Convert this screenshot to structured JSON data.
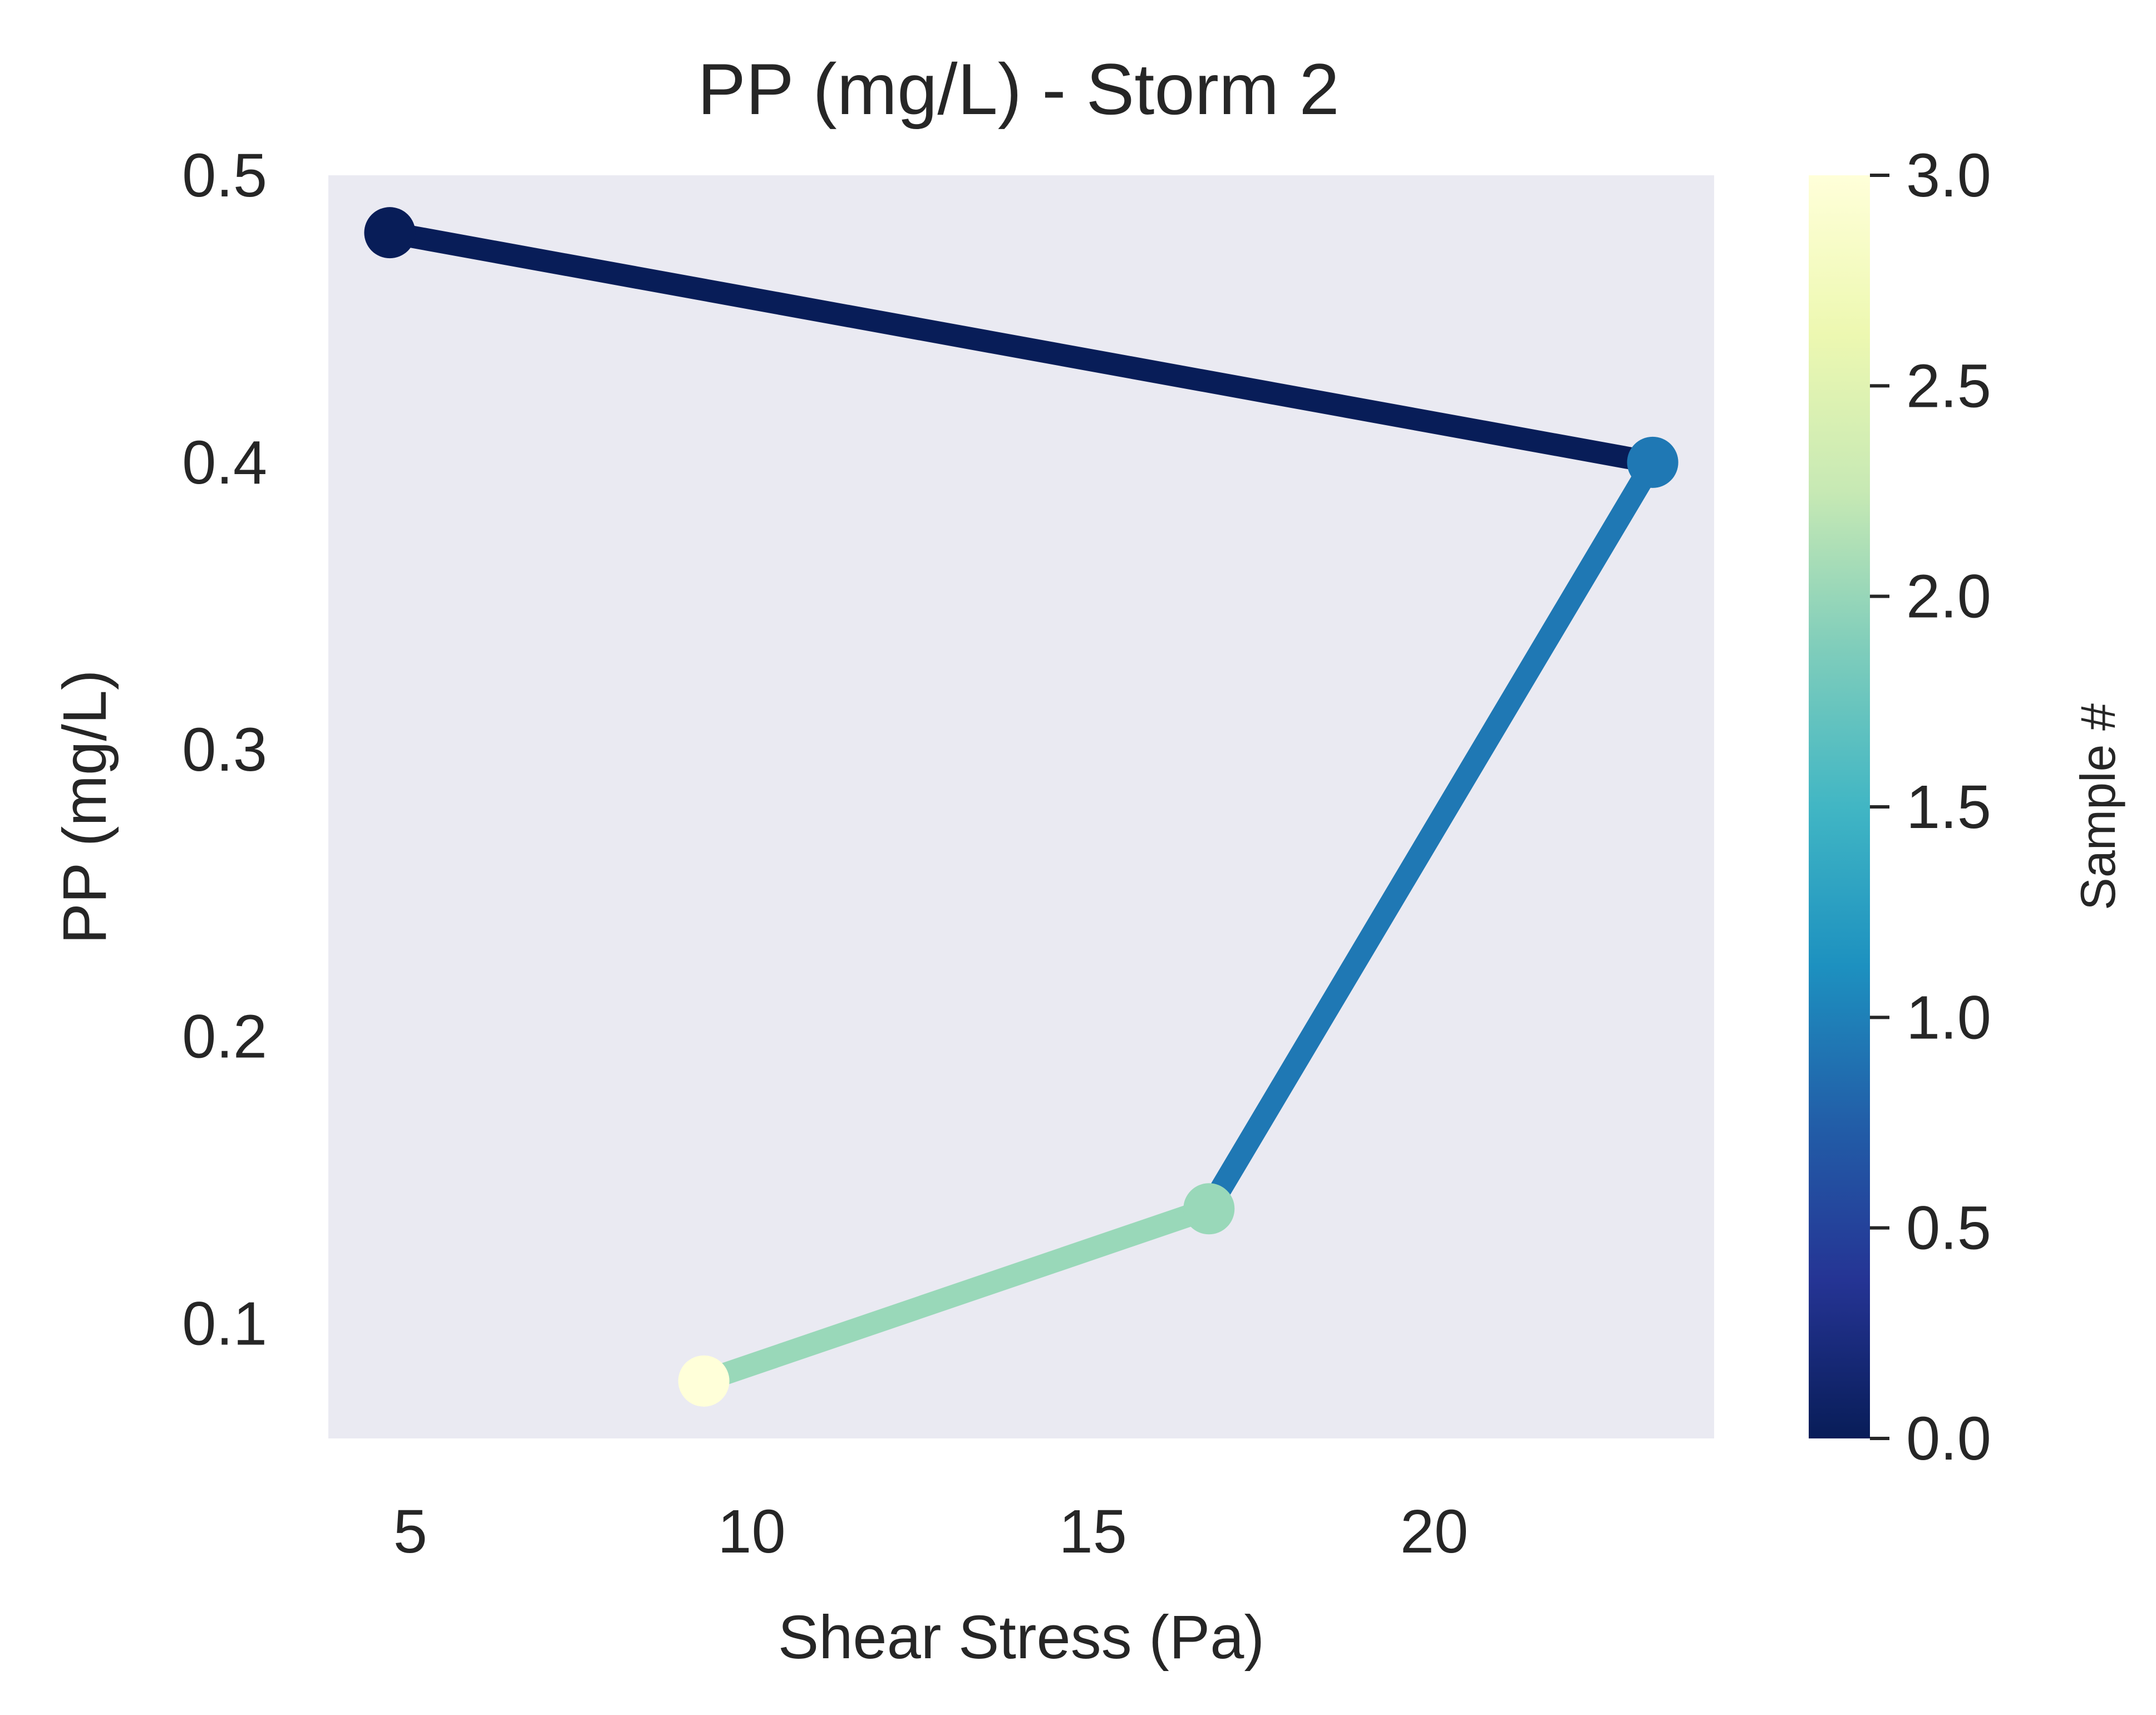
{
  "chart_data": {
    "type": "line",
    "title": "PP (mg/L) - Storm 2",
    "xlabel": "Shear Stress (Pa)",
    "ylabel": "PP (mg/L)",
    "xlim": [
      3.8,
      24.1
    ],
    "ylim": [
      0.06,
      0.5
    ],
    "xticks": [
      5,
      10,
      15,
      20
    ],
    "yticks": [
      0.1,
      0.2,
      0.3,
      0.4,
      0.5
    ],
    "grid": false,
    "plot_background": "#eaeaf2",
    "series": [
      {
        "x": [
          4.7,
          23.2,
          16.7,
          9.3
        ],
        "y": [
          0.48,
          0.4,
          0.14,
          0.08
        ],
        "sample": [
          0,
          1,
          2,
          3
        ]
      }
    ],
    "colorbar": {
      "label": "Sample #",
      "range": [
        0.0,
        3.0
      ],
      "ticks": [
        "0.0",
        "0.5",
        "1.0",
        "1.5",
        "2.0",
        "2.5",
        "3.0"
      ],
      "colormap": [
        "#081d58",
        "#253494",
        "#225ea8",
        "#1d91c0",
        "#41b6c4",
        "#7fcdbb",
        "#c7e9b4",
        "#edf8b1",
        "#ffffd9"
      ],
      "point_colors": [
        "#081d58",
        "#1f78b4",
        "#99d8b9",
        "#ffffd9"
      ]
    }
  }
}
